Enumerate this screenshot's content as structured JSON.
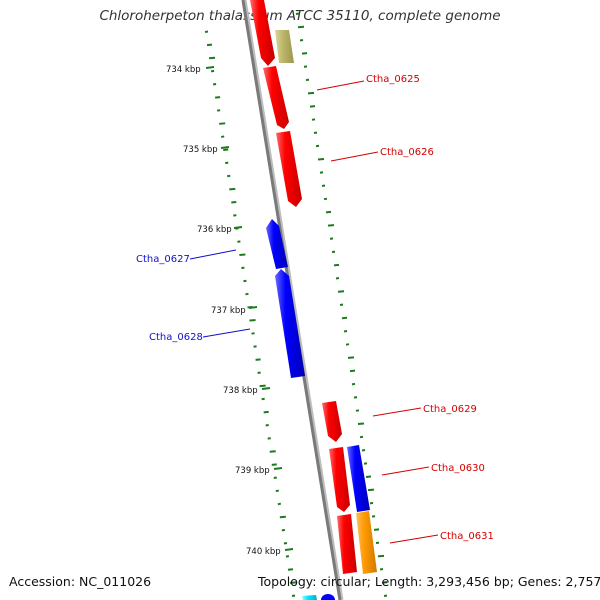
{
  "title": "Chloroherpeton thalassium ATCC 35110, complete genome",
  "footer": {
    "accession": "Accession: NC_011026",
    "summary": "Topology: circular; Length: 3,293,456 bp; Genes: 2,757"
  },
  "ruler": [
    {
      "label": "734 kbp"
    },
    {
      "label": "735 kbp"
    },
    {
      "label": "736 kbp"
    },
    {
      "label": "737 kbp"
    },
    {
      "label": "738 kbp"
    },
    {
      "label": "739 kbp"
    },
    {
      "label": "740 kbp"
    }
  ],
  "gene_labels": [
    {
      "name": "Ctha_0625",
      "color": "#d40000"
    },
    {
      "name": "Ctha_0626",
      "color": "#d40000"
    },
    {
      "name": "Ctha_0627",
      "color": "#1010c8"
    },
    {
      "name": "Ctha_0628",
      "color": "#1010c8"
    },
    {
      "name": "Ctha_0629",
      "color": "#d40000"
    },
    {
      "name": "Ctha_0630",
      "color": "#d40000"
    },
    {
      "name": "Ctha_0631",
      "color": "#d40000"
    }
  ],
  "colors": {
    "forward_gene": "#ff0000",
    "reverse_gene": "#0000ff",
    "orange_gene": "#ff9900",
    "olive_gene": "#bdb76b",
    "cyan_gene": "#00e5ff",
    "backbone": "#888888",
    "gc_marks": "#1e7a1e"
  }
}
